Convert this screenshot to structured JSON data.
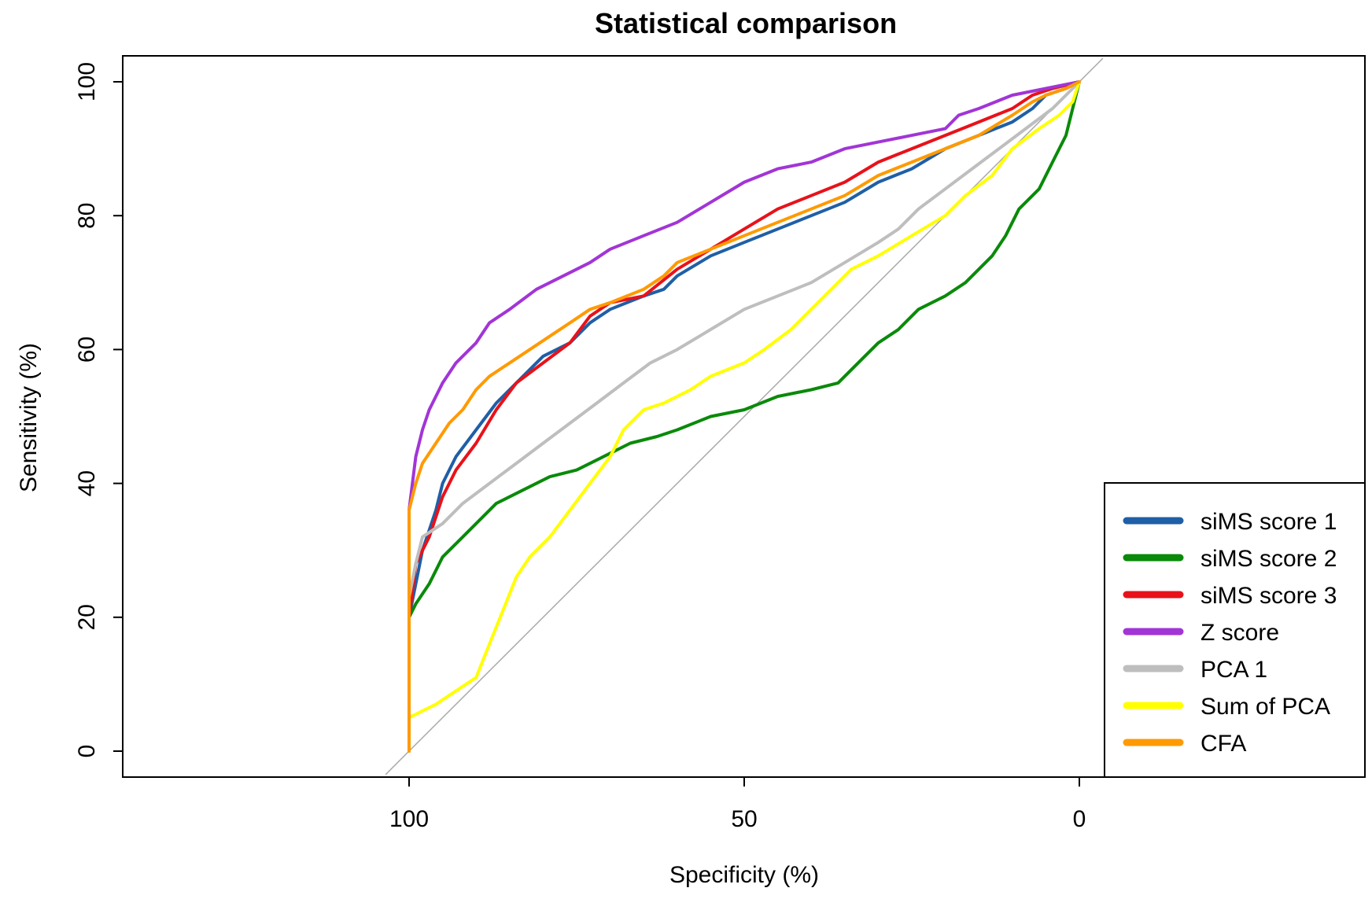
{
  "chart_data": {
    "type": "line",
    "title": "Statistical comparison",
    "xlabel": "Specificity (%)",
    "ylabel": "Sensitivity (%)",
    "xlim": [
      100,
      0
    ],
    "ylim": [
      0,
      100
    ],
    "x_reversed": true,
    "x_ticks": [
      100,
      50,
      0
    ],
    "y_ticks": [
      0,
      20,
      40,
      60,
      80,
      100
    ],
    "reference_line": "diagonal",
    "grid": false,
    "legend_position": "bottom-right",
    "series": [
      {
        "name": "siMS score 1",
        "color": "#1f5fa6",
        "points": [
          [
            100,
            0
          ],
          [
            100,
            20
          ],
          [
            99,
            25
          ],
          [
            98,
            30
          ],
          [
            96,
            36
          ],
          [
            95,
            40
          ],
          [
            93,
            44
          ],
          [
            90,
            48
          ],
          [
            87,
            52
          ],
          [
            84,
            55
          ],
          [
            80,
            59
          ],
          [
            76,
            61
          ],
          [
            73,
            64
          ],
          [
            70,
            66
          ],
          [
            65,
            68
          ],
          [
            62,
            69
          ],
          [
            60,
            71
          ],
          [
            55,
            74
          ],
          [
            50,
            76
          ],
          [
            45,
            78
          ],
          [
            40,
            80
          ],
          [
            35,
            82
          ],
          [
            30,
            85
          ],
          [
            25,
            87
          ],
          [
            20,
            90
          ],
          [
            15,
            92
          ],
          [
            10,
            94
          ],
          [
            7,
            96
          ],
          [
            5,
            98
          ],
          [
            2,
            99
          ],
          [
            0,
            100
          ]
        ]
      },
      {
        "name": "siMS score 2",
        "color": "#0a8a0a",
        "points": [
          [
            100,
            0
          ],
          [
            100,
            20
          ],
          [
            99,
            22
          ],
          [
            97,
            25
          ],
          [
            95,
            29
          ],
          [
            92,
            32
          ],
          [
            90,
            34
          ],
          [
            87,
            37
          ],
          [
            83,
            39
          ],
          [
            79,
            41
          ],
          [
            75,
            42
          ],
          [
            71,
            44
          ],
          [
            67,
            46
          ],
          [
            63,
            47
          ],
          [
            60,
            48
          ],
          [
            55,
            50
          ],
          [
            50,
            51
          ],
          [
            45,
            53
          ],
          [
            40,
            54
          ],
          [
            36,
            55
          ],
          [
            33,
            58
          ],
          [
            30,
            61
          ],
          [
            27,
            63
          ],
          [
            24,
            66
          ],
          [
            20,
            68
          ],
          [
            17,
            70
          ],
          [
            13,
            74
          ],
          [
            11,
            77
          ],
          [
            9,
            81
          ],
          [
            6,
            84
          ],
          [
            4,
            88
          ],
          [
            2,
            92
          ],
          [
            1,
            96
          ],
          [
            0,
            100
          ]
        ]
      },
      {
        "name": "siMS score 3",
        "color": "#e8121a",
        "points": [
          [
            100,
            0
          ],
          [
            100,
            20
          ],
          [
            99,
            28
          ],
          [
            97,
            32
          ],
          [
            95,
            38
          ],
          [
            93,
            42
          ],
          [
            90,
            46
          ],
          [
            87,
            51
          ],
          [
            84,
            55
          ],
          [
            80,
            58
          ],
          [
            76,
            61
          ],
          [
            73,
            65
          ],
          [
            70,
            67
          ],
          [
            65,
            68
          ],
          [
            60,
            72
          ],
          [
            55,
            75
          ],
          [
            50,
            78
          ],
          [
            45,
            81
          ],
          [
            40,
            83
          ],
          [
            35,
            85
          ],
          [
            30,
            88
          ],
          [
            25,
            90
          ],
          [
            20,
            92
          ],
          [
            15,
            94
          ],
          [
            10,
            96
          ],
          [
            7,
            98
          ],
          [
            4,
            99
          ],
          [
            0,
            100
          ]
        ]
      },
      {
        "name": "Z score",
        "color": "#a235d6",
        "points": [
          [
            100,
            0
          ],
          [
            100,
            36
          ],
          [
            99,
            44
          ],
          [
            98,
            48
          ],
          [
            97,
            51
          ],
          [
            95,
            55
          ],
          [
            93,
            58
          ],
          [
            90,
            61
          ],
          [
            88,
            64
          ],
          [
            85,
            66
          ],
          [
            81,
            69
          ],
          [
            77,
            71
          ],
          [
            73,
            73
          ],
          [
            70,
            75
          ],
          [
            65,
            77
          ],
          [
            60,
            79
          ],
          [
            55,
            82
          ],
          [
            50,
            85
          ],
          [
            45,
            87
          ],
          [
            40,
            88
          ],
          [
            35,
            90
          ],
          [
            30,
            91
          ],
          [
            25,
            92
          ],
          [
            20,
            93
          ],
          [
            18,
            95
          ],
          [
            15,
            96
          ],
          [
            10,
            98
          ],
          [
            5,
            99
          ],
          [
            0,
            100
          ]
        ]
      },
      {
        "name": "PCA 1",
        "color": "#bebebe",
        "points": [
          [
            100,
            0
          ],
          [
            100,
            23
          ],
          [
            99,
            28
          ],
          [
            98,
            32
          ],
          [
            95,
            34
          ],
          [
            92,
            37
          ],
          [
            88,
            40
          ],
          [
            84,
            43
          ],
          [
            80,
            46
          ],
          [
            76,
            49
          ],
          [
            72,
            52
          ],
          [
            68,
            55
          ],
          [
            64,
            58
          ],
          [
            60,
            60
          ],
          [
            55,
            63
          ],
          [
            50,
            66
          ],
          [
            45,
            68
          ],
          [
            40,
            70
          ],
          [
            35,
            73
          ],
          [
            30,
            76
          ],
          [
            27,
            78
          ],
          [
            24,
            81
          ],
          [
            20,
            84
          ],
          [
            16,
            87
          ],
          [
            12,
            90
          ],
          [
            8,
            93
          ],
          [
            4,
            96
          ],
          [
            2,
            98
          ],
          [
            0,
            100
          ]
        ]
      },
      {
        "name": "Sum of PCA",
        "color": "#ffff00",
        "points": [
          [
            100,
            0
          ],
          [
            100,
            5
          ],
          [
            98,
            6
          ],
          [
            96,
            7
          ],
          [
            93,
            9
          ],
          [
            90,
            11
          ],
          [
            88,
            16
          ],
          [
            86,
            21
          ],
          [
            84,
            26
          ],
          [
            82,
            29
          ],
          [
            79,
            32
          ],
          [
            76,
            36
          ],
          [
            73,
            40
          ],
          [
            70,
            44
          ],
          [
            68,
            48
          ],
          [
            65,
            51
          ],
          [
            62,
            52
          ],
          [
            58,
            54
          ],
          [
            55,
            56
          ],
          [
            50,
            58
          ],
          [
            47,
            60
          ],
          [
            43,
            63
          ],
          [
            40,
            66
          ],
          [
            37,
            69
          ],
          [
            34,
            72
          ],
          [
            30,
            74
          ],
          [
            25,
            77
          ],
          [
            20,
            80
          ],
          [
            17,
            83
          ],
          [
            13,
            86
          ],
          [
            10,
            90
          ],
          [
            6,
            93
          ],
          [
            3,
            95
          ],
          [
            1,
            97
          ],
          [
            0,
            100
          ]
        ]
      },
      {
        "name": "CFA",
        "color": "#ff9a00",
        "points": [
          [
            100,
            0
          ],
          [
            100,
            36
          ],
          [
            99,
            40
          ],
          [
            98,
            43
          ],
          [
            96,
            46
          ],
          [
            94,
            49
          ],
          [
            92,
            51
          ],
          [
            90,
            54
          ],
          [
            88,
            56
          ],
          [
            85,
            58
          ],
          [
            82,
            60
          ],
          [
            79,
            62
          ],
          [
            76,
            64
          ],
          [
            73,
            66
          ],
          [
            70,
            67
          ],
          [
            65,
            69
          ],
          [
            62,
            71
          ],
          [
            60,
            73
          ],
          [
            55,
            75
          ],
          [
            50,
            77
          ],
          [
            45,
            79
          ],
          [
            40,
            81
          ],
          [
            35,
            83
          ],
          [
            30,
            86
          ],
          [
            25,
            88
          ],
          [
            20,
            90
          ],
          [
            15,
            92
          ],
          [
            10,
            95
          ],
          [
            7,
            97
          ],
          [
            5,
            98
          ],
          [
            2,
            99
          ],
          [
            0,
            100
          ]
        ]
      }
    ]
  }
}
